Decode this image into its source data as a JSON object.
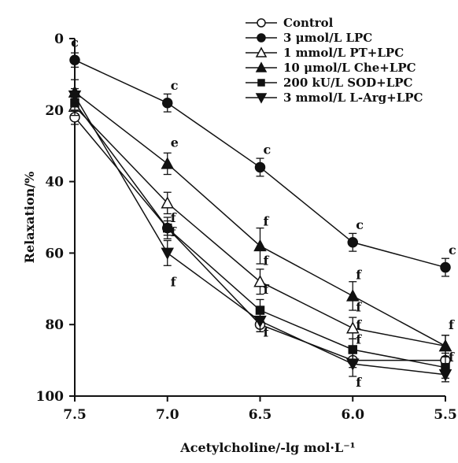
{
  "chart_data": {
    "type": "line",
    "title": "",
    "xlabel": "Acetylcholine/-lg mol·L⁻¹",
    "ylabel": "Relaxation/%",
    "x": [
      7.5,
      7.0,
      6.5,
      6.0,
      5.5
    ],
    "x_tick_labels": [
      "7.5",
      "7.0",
      "6.5",
      "6.0",
      "5.5"
    ],
    "xlim": [
      7.5,
      5.5
    ],
    "ylim": [
      0,
      100
    ],
    "y_axis_inverted": true,
    "y_ticks": [
      0,
      20,
      40,
      60,
      80,
      100
    ],
    "y_tick_labels": [
      "0",
      "20",
      "40",
      "60",
      "80",
      "100"
    ],
    "grid": false,
    "legend_position": "top-right",
    "series": [
      {
        "name": "Control",
        "marker": "circle-open",
        "values": [
          22,
          53,
          80,
          90,
          90
        ],
        "errors": [
          2,
          2,
          2,
          2,
          2
        ]
      },
      {
        "name": "3 μmol/L LPC",
        "marker": "circle-filled",
        "values": [
          6,
          18,
          36,
          57,
          64
        ],
        "errors": [
          2,
          2.5,
          2.5,
          2.5,
          2.5
        ]
      },
      {
        "name": "1 mmol/L PT+LPC",
        "marker": "triangle-up-open",
        "values": [
          19,
          46,
          68,
          81,
          86
        ],
        "errors": [
          2.5,
          3,
          3.5,
          3,
          3
        ]
      },
      {
        "name": "10 μmol/L Che+LPC",
        "marker": "triangle-up-filled",
        "values": [
          15,
          35,
          58,
          72,
          86
        ],
        "errors": [
          3.5,
          3,
          5,
          4,
          3
        ]
      },
      {
        "name": "200 kU/L SOD+LPC",
        "marker": "square-filled",
        "values": [
          18,
          53,
          76,
          87,
          92
        ],
        "errors": [
          2,
          3,
          3,
          3,
          3
        ]
      },
      {
        "name": "3 mmol/L L-Arg+LPC",
        "marker": "triangle-down-filled",
        "values": [
          16,
          60,
          79,
          91,
          94
        ],
        "errors": [
          2,
          3.5,
          3,
          3.5,
          2
        ]
      }
    ],
    "annotations": [
      {
        "text": "c",
        "x": 7.5,
        "y": 1
      },
      {
        "text": "c",
        "x": 7.0,
        "y": 13
      },
      {
        "text": "e",
        "x": 7.0,
        "y": 29
      },
      {
        "text": "f",
        "x": 7.0,
        "y": 50
      },
      {
        "text": "f",
        "x": 7.0,
        "y": 54
      },
      {
        "text": "f",
        "x": 7.0,
        "y": 68
      },
      {
        "text": "c",
        "x": 6.5,
        "y": 31
      },
      {
        "text": "f",
        "x": 6.5,
        "y": 51
      },
      {
        "text": "f",
        "x": 6.5,
        "y": 62
      },
      {
        "text": "f",
        "x": 6.5,
        "y": 70
      },
      {
        "text": "f",
        "x": 6.5,
        "y": 82
      },
      {
        "text": "c",
        "x": 6.0,
        "y": 52
      },
      {
        "text": "f",
        "x": 6.0,
        "y": 66
      },
      {
        "text": "f",
        "x": 6.0,
        "y": 75
      },
      {
        "text": "f",
        "x": 6.0,
        "y": 80
      },
      {
        "text": "f",
        "x": 6.0,
        "y": 84
      },
      {
        "text": "f",
        "x": 6.0,
        "y": 96
      },
      {
        "text": "c",
        "x": 5.5,
        "y": 59
      },
      {
        "text": "f",
        "x": 5.5,
        "y": 80
      },
      {
        "text": "f",
        "x": 5.5,
        "y": 89
      }
    ]
  }
}
